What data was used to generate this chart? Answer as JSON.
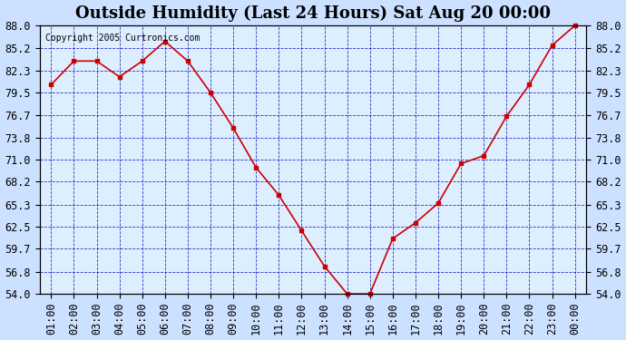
{
  "title": "Outside Humidity (Last 24 Hours) Sat Aug 20 00:00",
  "copyright": "Copyright 2005 Curtronics.com",
  "x_labels": [
    "01:00",
    "02:00",
    "03:00",
    "04:00",
    "05:00",
    "06:00",
    "07:00",
    "08:00",
    "09:00",
    "10:00",
    "11:00",
    "12:00",
    "13:00",
    "14:00",
    "15:00",
    "16:00",
    "17:00",
    "18:00",
    "19:00",
    "20:00",
    "21:00",
    "22:00",
    "23:00",
    "00:00"
  ],
  "y_values": [
    80.5,
    83.5,
    83.5,
    81.5,
    83.5,
    86.0,
    83.5,
    79.5,
    75.0,
    70.0,
    66.5,
    62.0,
    57.5,
    54.0,
    54.0,
    61.0,
    63.0,
    65.5,
    70.5,
    71.5,
    76.5,
    80.5,
    85.5,
    88.0
  ],
  "ylim_min": 54.0,
  "ylim_max": 88.0,
  "yticks": [
    54.0,
    56.8,
    59.7,
    62.5,
    65.3,
    68.2,
    71.0,
    73.8,
    76.7,
    79.5,
    82.3,
    85.2,
    88.0
  ],
  "line_color": "#cc0000",
  "marker_color": "#cc0000",
  "bg_color": "#cce0ff",
  "plot_bg_color": "#ddeeff",
  "grid_color": "#0000cc",
  "title_fontsize": 13,
  "tick_fontsize": 8.5
}
